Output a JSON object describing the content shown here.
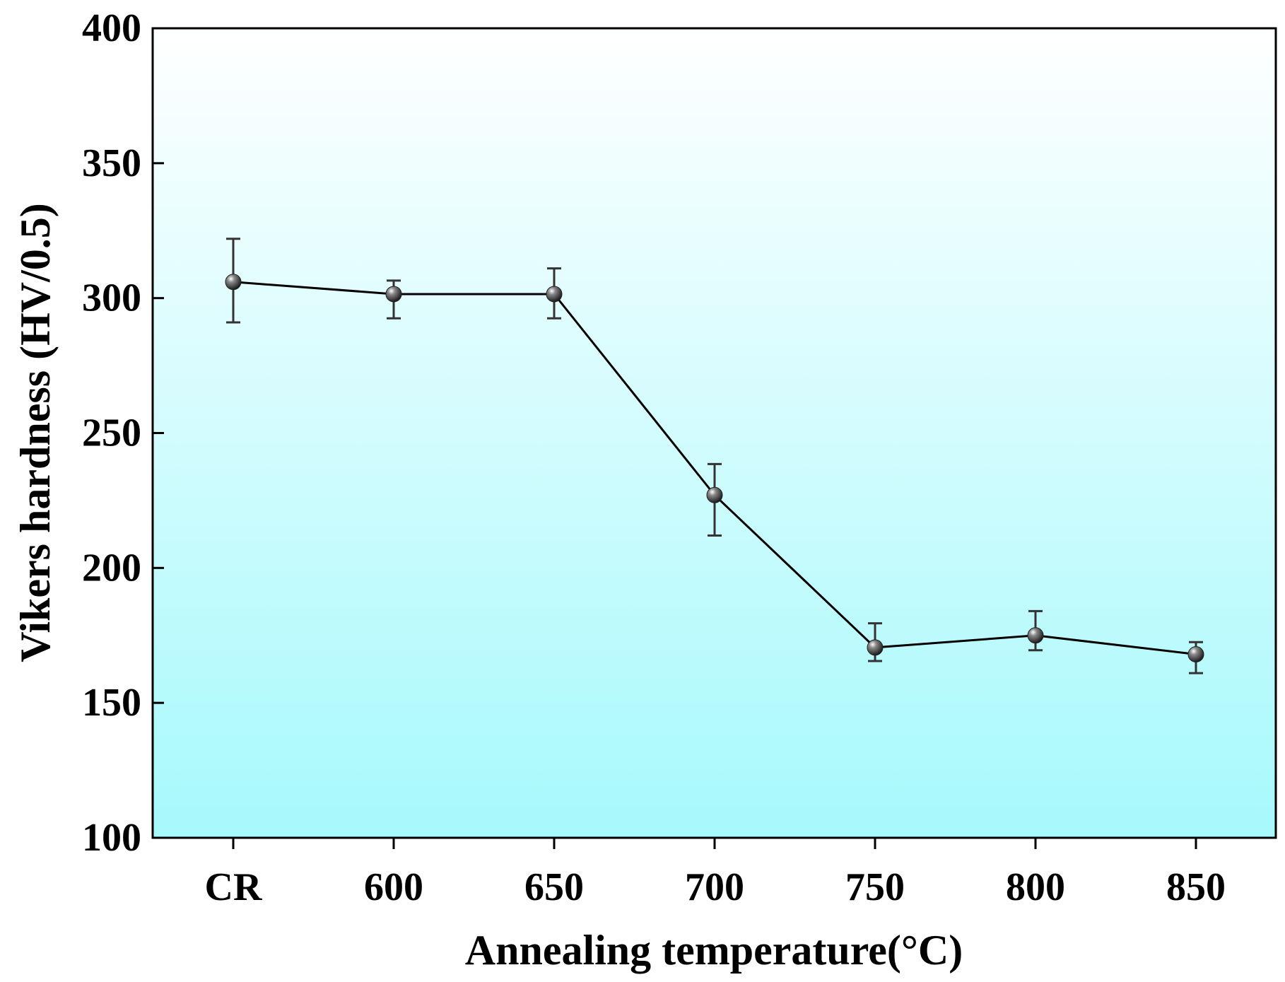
{
  "chart_data": {
    "type": "line",
    "title": "",
    "xlabel": "Annealing temperature(°C)",
    "ylabel": "Vikers hardness (HV/0.5)",
    "categories": [
      "CR",
      "600",
      "650",
      "700",
      "750",
      "800",
      "850"
    ],
    "series": [
      {
        "name": "Vikers hardness",
        "values": [
          306,
          301.5,
          301.5,
          227,
          170.5,
          175,
          168
        ],
        "error_upper": [
          322,
          306.5,
          311,
          238.5,
          179.5,
          184,
          172.5
        ],
        "error_lower": [
          291,
          292.5,
          292.5,
          212,
          165.5,
          169.5,
          161
        ]
      }
    ],
    "ylim": [
      100,
      400
    ],
    "yticks": [
      100,
      150,
      200,
      250,
      300,
      350,
      400
    ],
    "grid": false,
    "background_gradient": [
      "#ffffff",
      "#a6f9fc"
    ],
    "line_color": "#000000",
    "marker_color": "#333333",
    "errorbar_color": "#333333"
  }
}
